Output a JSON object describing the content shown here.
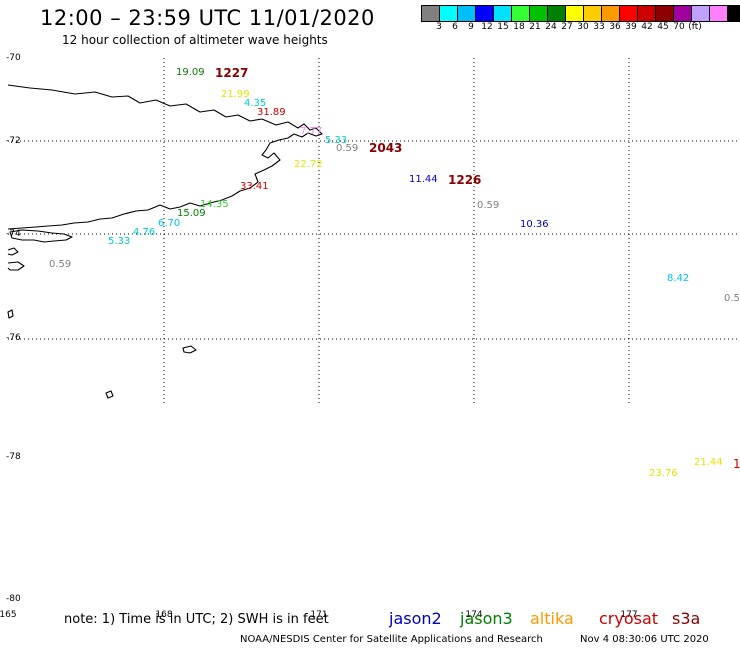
{
  "header": {
    "title": "12:00 – 23:59 UTC 11/01/2020",
    "subtitle": "12 hour collection of altimeter wave heights"
  },
  "colorbar": {
    "colors": [
      "#808080",
      "#00ffff",
      "#00bfff",
      "#0000ff",
      "#00e0ff",
      "#33ff33",
      "#00c000",
      "#008000",
      "#ffff00",
      "#ffcc00",
      "#ff9900",
      "#ff0000",
      "#cc0000",
      "#8b0000",
      "#a000a0",
      "#c0a0ff",
      "#ff80ff",
      "#000000"
    ],
    "labels": [
      "3",
      "6",
      "9",
      "12",
      "15",
      "18",
      "21",
      "24",
      "27",
      "30",
      "33",
      "36",
      "39",
      "42",
      "45",
      "70",
      "(ft)"
    ]
  },
  "axes": {
    "lat_labels": [
      "-70",
      "-72",
      "-74",
      "-76",
      "-78",
      "-80"
    ],
    "lon_labels": [
      "165",
      "168",
      "171",
      "174",
      "177"
    ]
  },
  "observations": [
    {
      "value": "19.09",
      "color": "#008000"
    },
    {
      "value": "21.99",
      "color": "#e6e600"
    },
    {
      "value": "4.35",
      "color": "#00cccc"
    },
    {
      "value": "31.89",
      "color": "#cc0000"
    },
    {
      "value": "7.77",
      "color": "#ff80ff"
    },
    {
      "value": "5.33",
      "color": "#00cccc"
    },
    {
      "value": "0.59",
      "color": "#808080"
    },
    {
      "value": "22.72",
      "color": "#e6e600"
    },
    {
      "value": "33.41",
      "color": "#cc0000"
    },
    {
      "value": "14.35",
      "color": "#33cc33"
    },
    {
      "value": "15.09",
      "color": "#008000"
    },
    {
      "value": "6.70",
      "color": "#00bfff"
    },
    {
      "value": "4.76",
      "color": "#00cccc"
    },
    {
      "value": "5.33",
      "color": "#00cccc"
    },
    {
      "value": "0.59",
      "color": "#808080"
    },
    {
      "value": "11.44",
      "color": "#0000cc"
    },
    {
      "value": "0.59",
      "color": "#808080"
    },
    {
      "value": "10.36",
      "color": "#0000cc"
    },
    {
      "value": "8.42",
      "color": "#00bfff"
    },
    {
      "value": "0.5",
      "color": "#808080"
    },
    {
      "value": "21.44",
      "color": "#e6e600"
    },
    {
      "value": "23.76",
      "color": "#e6e600"
    },
    {
      "value": "1",
      "color": "#cc0000"
    }
  ],
  "times": [
    {
      "value": "1227",
      "color": "#8b0000"
    },
    {
      "value": "2043",
      "color": "#8b0000"
    },
    {
      "value": "1226",
      "color": "#8b0000"
    }
  ],
  "footer": {
    "note": "note:  1) Time is in UTC;  2) SWH is in feet",
    "missions": [
      {
        "name": "jason2",
        "color": "#0000cc"
      },
      {
        "name": "jason3",
        "color": "#008000"
      },
      {
        "name": "altika",
        "color": "#ff9900"
      },
      {
        "name": "cryosat",
        "color": "#cc0000"
      },
      {
        "name": "s3a",
        "color": "#8b0000"
      }
    ],
    "credit": "NOAA/NESDIS Center for Satellite Applications and Research",
    "date": "Nov  4 08:30:06 UTC 2020"
  }
}
